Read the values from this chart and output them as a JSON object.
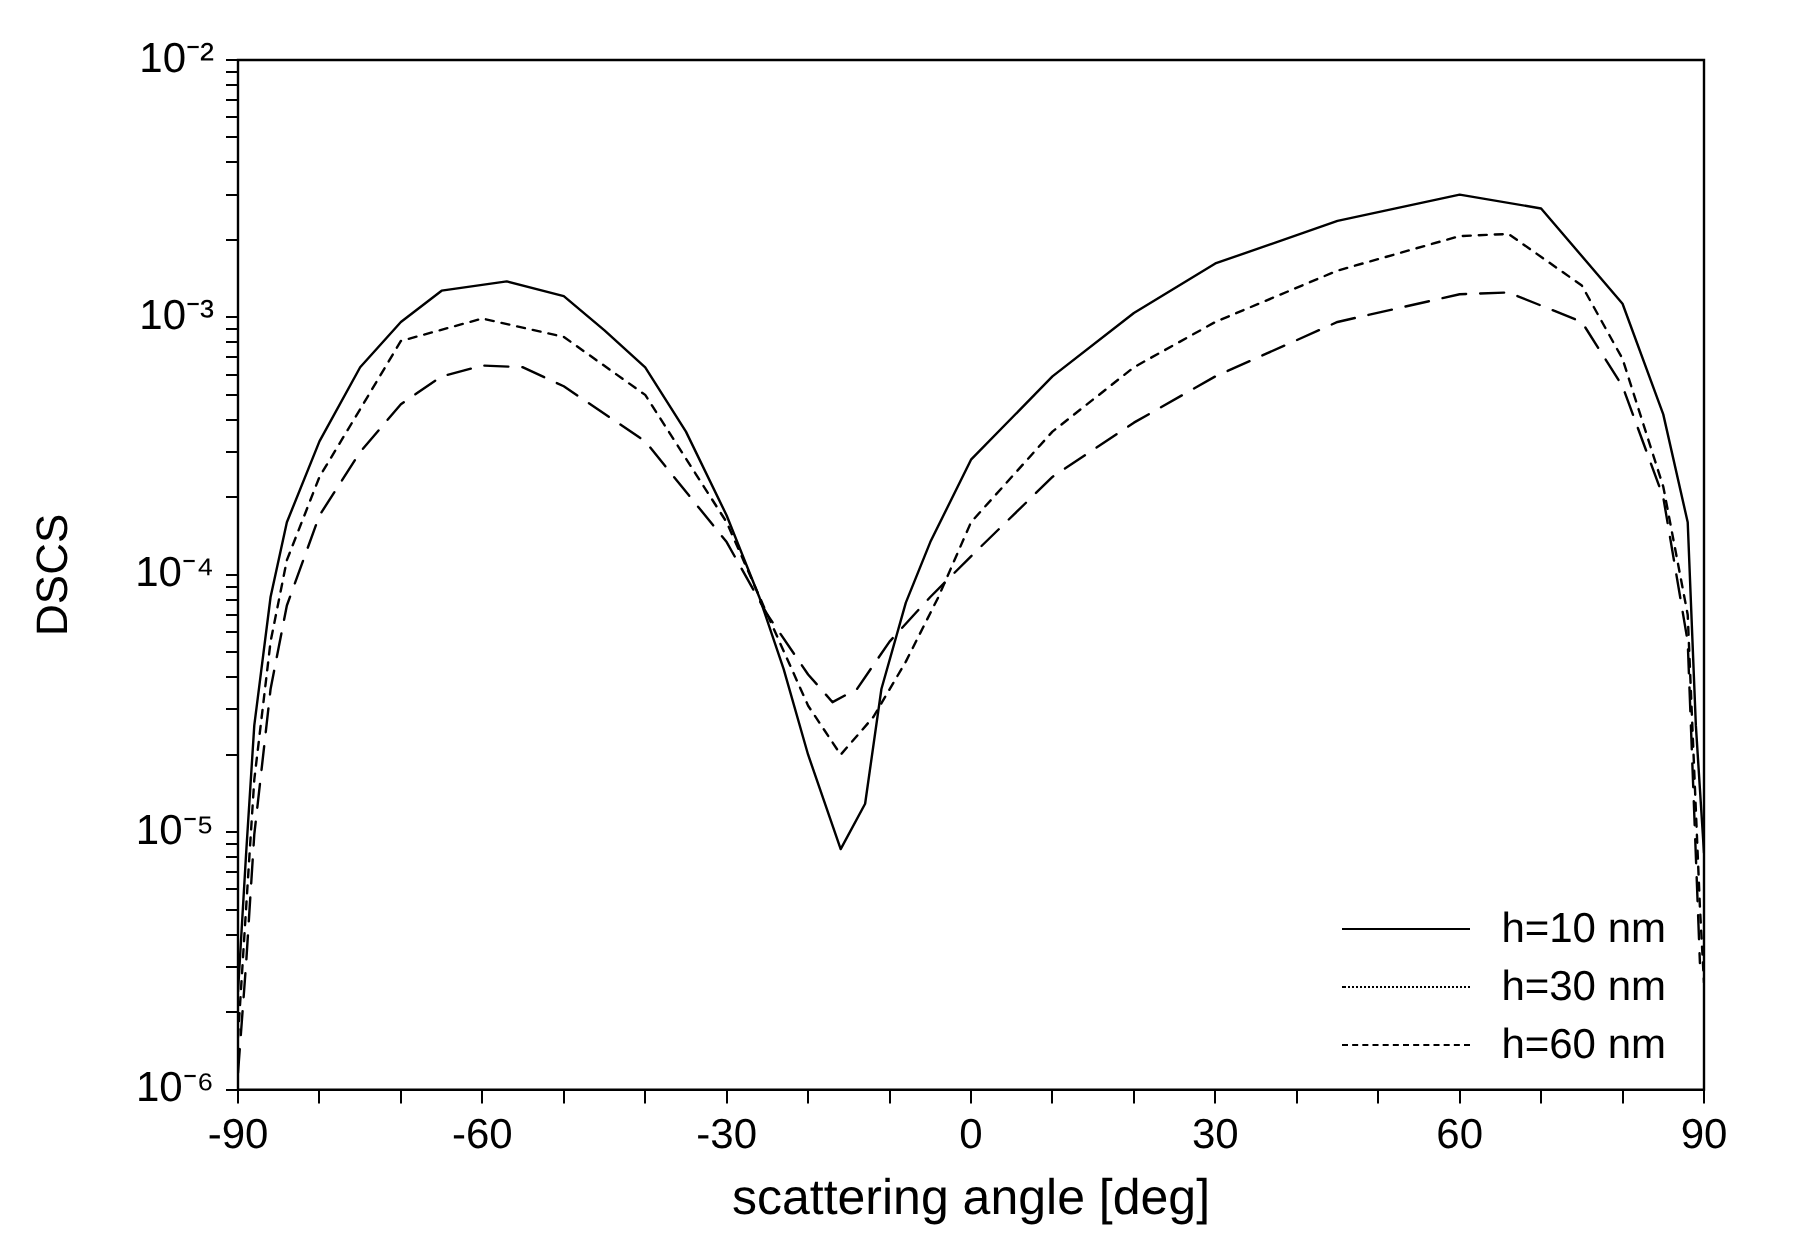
{
  "chart_data": {
    "type": "line",
    "xlabel": "scattering angle [deg]",
    "ylabel": "DSCS",
    "log": true,
    "grid": false,
    "legend": "bottom right",
    "marker": "none",
    "xlim": [
      -90,
      90
    ],
    "xticks": [
      -90,
      {
        "value": -80,
        "label": null
      },
      {
        "value": -70,
        "label": null
      },
      -60,
      {
        "value": -50,
        "label": null
      },
      {
        "value": -40,
        "label": null
      },
      -30,
      {
        "value": -20,
        "label": null
      },
      {
        "value": -10,
        "label": null
      },
      0,
      {
        "value": 10,
        "label": null
      },
      {
        "value": 20,
        "label": null
      },
      30,
      {
        "value": 40,
        "label": null
      },
      {
        "value": 50,
        "label": null
      },
      60,
      {
        "value": 70,
        "label": null
      },
      {
        "value": 80,
        "label": null
      },
      90
    ],
    "ylim": [
      1e-06,
      0.01
    ],
    "yticks": [
      {
        "value": 1e-06,
        "label": "10⁻⁶"
      },
      {
        "value": 2e-06,
        "label": null
      },
      {
        "value": 3e-06,
        "label": null
      },
      {
        "value": 4e-06,
        "label": null
      },
      {
        "value": 5e-06,
        "label": null
      },
      {
        "value": 6e-06,
        "label": null
      },
      {
        "value": 7e-06,
        "label": null
      },
      {
        "value": 8e-06,
        "label": null
      },
      {
        "value": 9e-06,
        "label": null
      },
      {
        "value": 1e-05,
        "label": "10⁻⁵"
      },
      {
        "value": 2e-05,
        "label": null
      },
      {
        "value": 3e-05,
        "label": null
      },
      {
        "value": 4e-05,
        "label": null
      },
      {
        "value": 5e-05,
        "label": null
      },
      {
        "value": 6e-05,
        "label": null
      },
      {
        "value": 7e-05,
        "label": null
      },
      {
        "value": 8e-05,
        "label": null
      },
      {
        "value": 9e-05,
        "label": null
      },
      {
        "value": 0.0001,
        "label": "10⁻⁴"
      },
      {
        "value": 0.0002,
        "label": null
      },
      {
        "value": 0.0003,
        "label": null
      },
      {
        "value": 0.0004,
        "label": null
      },
      {
        "value": 0.0005,
        "label": null
      },
      {
        "value": 0.0006,
        "label": null
      },
      {
        "value": 0.0007,
        "label": null
      },
      {
        "value": 0.0008,
        "label": null
      },
      {
        "value": 0.0009,
        "label": null
      },
      {
        "value": 0.001,
        "label": "10⁻³"
      },
      {
        "value": 0.002,
        "label": null
      },
      {
        "value": 0.003,
        "label": null
      },
      {
        "value": 0.004,
        "label": null
      },
      {
        "value": 0.005,
        "label": null
      },
      {
        "value": 0.006,
        "label": null
      },
      {
        "value": 0.007,
        "label": null
      },
      {
        "value": 0.008,
        "label": null
      },
      {
        "value": 0.009,
        "label": null
      },
      {
        "value": 0.01,
        "label": "10⁻²"
      }
    ],
    "series": [
      {
        "name": "h=10 nm",
        "color": "#000000",
        "line_style": "solid",
        "x": [
          -90,
          -89,
          -88,
          -86,
          -84,
          -80,
          -75,
          -70,
          -65,
          -57,
          -50,
          -45,
          -40,
          -35,
          -30,
          -26,
          -23,
          -20,
          -16,
          -13,
          -11,
          -8,
          -5,
          0,
          10,
          20,
          30,
          45,
          60,
          70,
          80,
          85,
          88,
          89,
          90
        ],
        "values": [
          2.4e-06,
          8.3e-06,
          2.6e-05,
          8.2e-05,
          0.00016,
          0.00033,
          0.00064,
          0.00096,
          0.00127,
          0.00138,
          0.00121,
          0.00089,
          0.00064,
          0.00036,
          0.00017,
          8.2e-05,
          4.3e-05,
          2e-05,
          8.6e-06,
          1.29e-05,
          3.6e-05,
          7.8e-05,
          0.000134,
          0.00028,
          0.00059,
          0.00104,
          0.00162,
          0.00237,
          0.003,
          0.00265,
          0.00113,
          0.00042,
          0.00016,
          2.6e-05,
          8.3e-06
        ]
      },
      {
        "name": "h=30 nm",
        "color": "#000000",
        "line_style": "dotted",
        "x": [
          -90,
          -89,
          -88,
          -86,
          -84,
          -80,
          -75,
          -70,
          -60,
          -50,
          -40,
          -30,
          -25,
          -20,
          -16,
          -12,
          -8,
          -4,
          0,
          10,
          20,
          30,
          45,
          60,
          66,
          75,
          80,
          85,
          88,
          89.5,
          90
        ],
        "values": [
          1.6e-06,
          5.1e-06,
          1.6e-05,
          5.5e-05,
          0.000114,
          0.00024,
          0.00044,
          0.00081,
          0.00099,
          0.00084,
          0.0005,
          0.00016,
          7e-05,
          3.1e-05,
          2e-05,
          2.8e-05,
          4.6e-05,
          8.2e-05,
          0.00016,
          0.00036,
          0.00064,
          0.00096,
          0.00152,
          0.00207,
          0.00211,
          0.00133,
          0.00069,
          0.00022,
          7e-05,
          5.1e-06,
          2.6e-06
        ]
      },
      {
        "name": "h=60 nm",
        "color": "#000000",
        "line_style": "dashed",
        "x": [
          -90,
          -89,
          -88,
          -86,
          -84,
          -80,
          -75,
          -70,
          -65,
          -60,
          -55,
          -50,
          -40,
          -30,
          -25,
          -20,
          -17,
          -14,
          -10,
          -5,
          0,
          10,
          20,
          30,
          45,
          60,
          66,
          75,
          80,
          85,
          88,
          89.5
        ],
        "values": [
          1.16e-06,
          3.1e-06,
          9.8e-06,
          3.6e-05,
          7.6e-05,
          0.00017,
          0.0003,
          0.00046,
          0.00059,
          0.00065,
          0.00064,
          0.00054,
          0.00033,
          0.000134,
          7e-05,
          4.1e-05,
          3.2e-05,
          3.6e-05,
          5.5e-05,
          8.2e-05,
          0.000118,
          0.00024,
          0.00039,
          0.00059,
          0.00096,
          0.00123,
          0.00125,
          0.00096,
          0.00054,
          0.0002,
          5.5e-05,
          3.1e-06
        ]
      }
    ]
  }
}
